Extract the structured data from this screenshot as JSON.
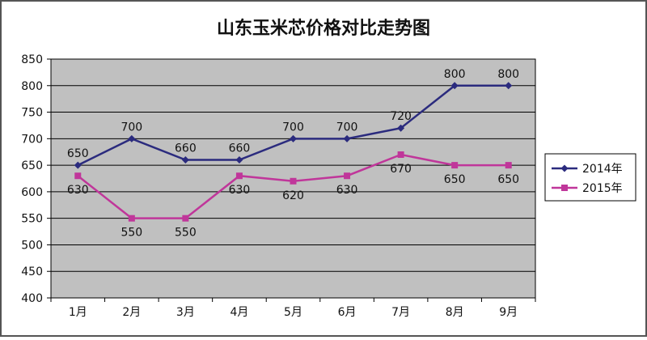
{
  "chart_data": {
    "type": "line",
    "title": "山东玉米芯价格对比走势图",
    "xlabel": "",
    "ylabel": "",
    "categories": [
      "1月",
      "2月",
      "3月",
      "4月",
      "5月",
      "6月",
      "7月",
      "8月",
      "9月"
    ],
    "ylim": [
      400,
      850
    ],
    "yticks": [
      400,
      450,
      500,
      550,
      600,
      650,
      700,
      750,
      800,
      850
    ],
    "grid": true,
    "legend_position": "right",
    "series": [
      {
        "name": "2014年",
        "values": [
          650,
          700,
          660,
          660,
          700,
          700,
          720,
          800,
          800
        ],
        "labels": [
          "650",
          "700",
          "660",
          "660",
          "700",
          "700",
          "720",
          "800",
          "800"
        ],
        "color": "#2b2b7e",
        "marker": "diamond"
      },
      {
        "name": "2015年",
        "values": [
          630,
          550,
          550,
          630,
          620,
          630,
          670,
          650,
          650
        ],
        "labels": [
          "630",
          "550",
          "550",
          "630",
          "620",
          "630",
          "670",
          "650",
          "650"
        ],
        "color": "#c0369a",
        "marker": "square"
      }
    ],
    "plot_background": "#c0c0c0"
  }
}
